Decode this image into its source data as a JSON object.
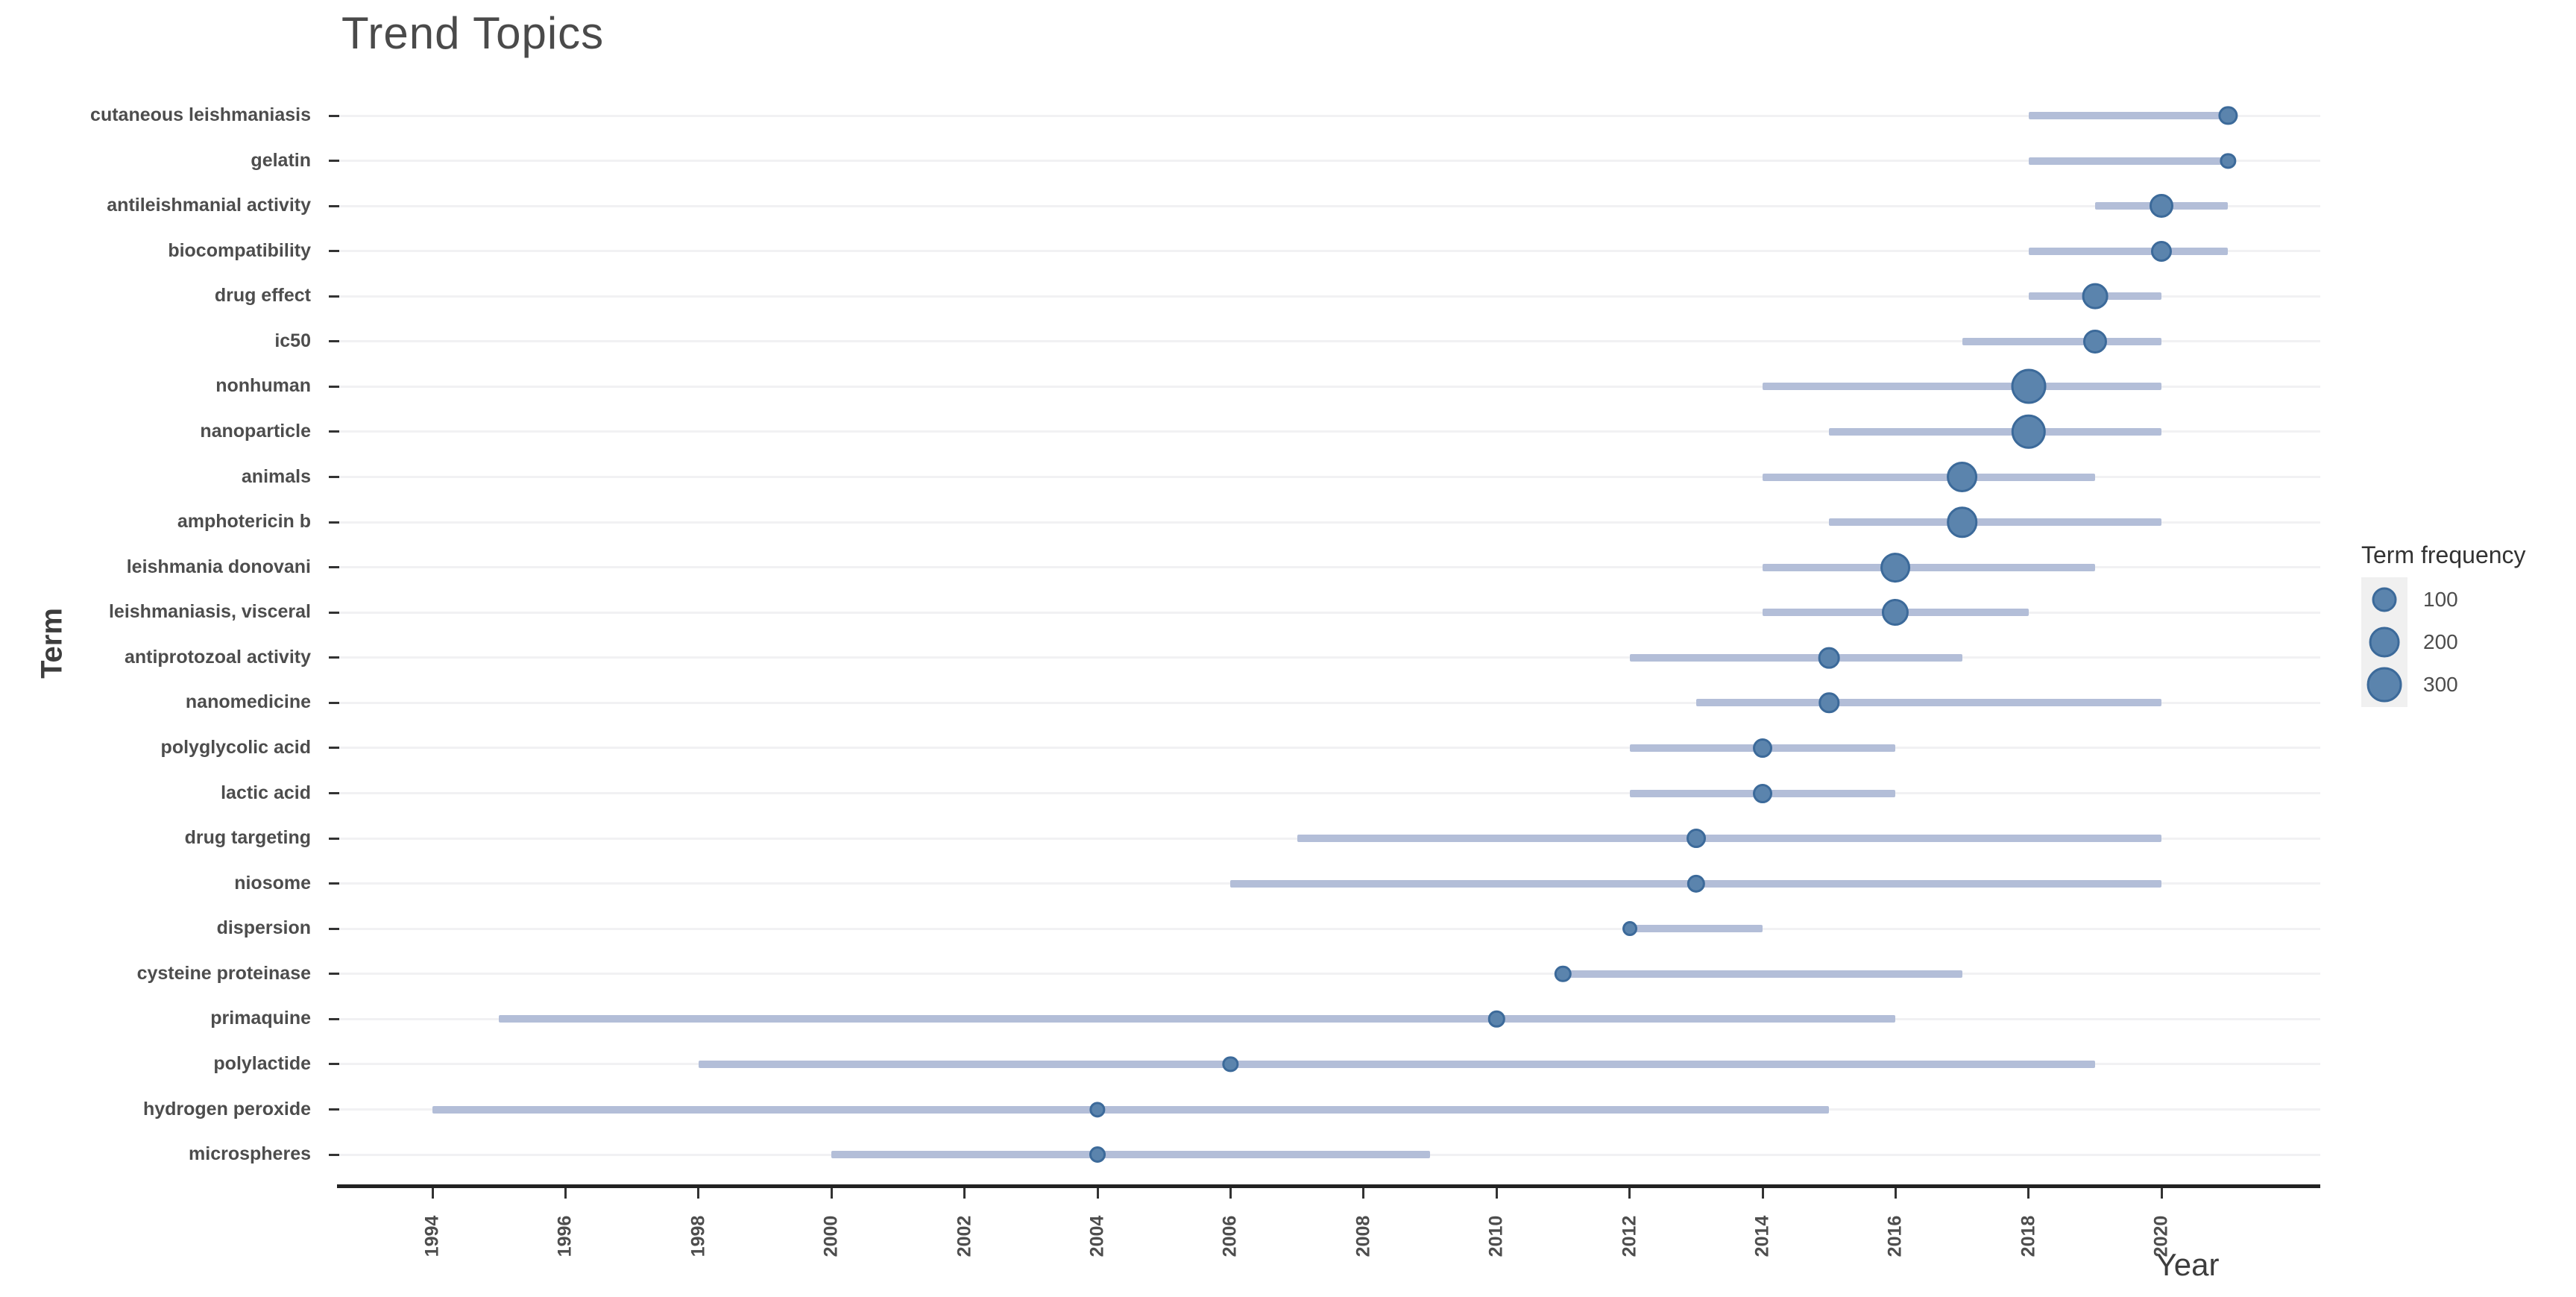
{
  "title": "Trend Topics",
  "x_axis": {
    "label": "Year",
    "ticks": [
      1994,
      1996,
      1998,
      2000,
      2002,
      2004,
      2006,
      2008,
      2010,
      2012,
      2014,
      2016,
      2018,
      2020
    ]
  },
  "y_axis": {
    "label": "Term"
  },
  "legend": {
    "title": "Term frequency",
    "entries": [
      {
        "label": "100",
        "value": 100
      },
      {
        "label": "200",
        "value": 200
      },
      {
        "label": "300",
        "value": 300
      }
    ]
  },
  "colors": {
    "dot_fill": "#5b84ad",
    "dot_border": "#3c6a9a",
    "interval_line": "#b3bed8",
    "grid_line": "#f1f1f3",
    "axis_line": "#222222",
    "text": "#4d4d4d",
    "legend_key_bg": "#f0f0f0"
  },
  "chart_data": {
    "type": "scatter",
    "title": "Trend Topics",
    "xlabel": "Year",
    "ylabel": "Term",
    "x_range": [
      1993,
      2022
    ],
    "grid": "horizontal-only",
    "legend_position": "right",
    "size_legend": {
      "title": "Term frequency",
      "values": [
        100,
        200,
        300
      ]
    },
    "description": "Each term has a horizontal line from first-quartile year to third-quartile year and a dot at the median year sized by term frequency",
    "terms": [
      {
        "term": "cutaneous leishmaniasis",
        "year_q1": 2018,
        "year_median": 2021,
        "year_q3": 2021,
        "freq": 35
      },
      {
        "term": "gelatin",
        "year_q1": 2018,
        "year_median": 2021,
        "year_q3": 2021,
        "freq": 15
      },
      {
        "term": "antileishmanial activity",
        "year_q1": 2019,
        "year_median": 2020,
        "year_q3": 2021,
        "freq": 90
      },
      {
        "term": "biocompatibility",
        "year_q1": 2018,
        "year_median": 2020,
        "year_q3": 2021,
        "freq": 55
      },
      {
        "term": "drug effect",
        "year_q1": 2018,
        "year_median": 2019,
        "year_q3": 2020,
        "freq": 120
      },
      {
        "term": "ic50",
        "year_q1": 2017,
        "year_median": 2019,
        "year_q3": 2020,
        "freq": 90
      },
      {
        "term": "nonhuman",
        "year_q1": 2014,
        "year_median": 2018,
        "year_q3": 2020,
        "freq": 300
      },
      {
        "term": "nanoparticle",
        "year_q1": 2015,
        "year_median": 2018,
        "year_q3": 2020,
        "freq": 290
      },
      {
        "term": "animals",
        "year_q1": 2014,
        "year_median": 2017,
        "year_q3": 2019,
        "freq": 215
      },
      {
        "term": "amphotericin b",
        "year_q1": 2015,
        "year_median": 2017,
        "year_q3": 2020,
        "freq": 210
      },
      {
        "term": "leishmania donovani",
        "year_q1": 2014,
        "year_median": 2016,
        "year_q3": 2019,
        "freq": 185
      },
      {
        "term": "leishmaniasis, visceral",
        "year_q1": 2014,
        "year_median": 2016,
        "year_q3": 2018,
        "freq": 135
      },
      {
        "term": "antiprotozoal activity",
        "year_q1": 2012,
        "year_median": 2015,
        "year_q3": 2017,
        "freq": 60
      },
      {
        "term": "nanomedicine",
        "year_q1": 2013,
        "year_median": 2015,
        "year_q3": 2020,
        "freq": 50
      },
      {
        "term": "polyglycolic acid",
        "year_q1": 2012,
        "year_median": 2014,
        "year_q3": 2016,
        "freq": 40
      },
      {
        "term": "lactic acid",
        "year_q1": 2012,
        "year_median": 2014,
        "year_q3": 2016,
        "freq": 40
      },
      {
        "term": "drug targeting",
        "year_q1": 2007,
        "year_median": 2013,
        "year_q3": 2020,
        "freq": 40
      },
      {
        "term": "niosome",
        "year_q1": 2006,
        "year_median": 2013,
        "year_q3": 2020,
        "freq": 30
      },
      {
        "term": "dispersion",
        "year_q1": 2012,
        "year_median": 2012,
        "year_q3": 2014,
        "freq": 10
      },
      {
        "term": "cysteine proteinase",
        "year_q1": 2011,
        "year_median": 2011,
        "year_q3": 2017,
        "freq": 20
      },
      {
        "term": "primaquine",
        "year_q1": 1995,
        "year_median": 2010,
        "year_q3": 2016,
        "freq": 20
      },
      {
        "term": "polylactide",
        "year_q1": 1998,
        "year_median": 2006,
        "year_q3": 2019,
        "freq": 15
      },
      {
        "term": "hydrogen peroxide",
        "year_q1": 1994,
        "year_median": 2004,
        "year_q3": 2015,
        "freq": 15
      },
      {
        "term": "microspheres",
        "year_q1": 2000,
        "year_median": 2004,
        "year_q3": 2009,
        "freq": 18
      }
    ]
  }
}
